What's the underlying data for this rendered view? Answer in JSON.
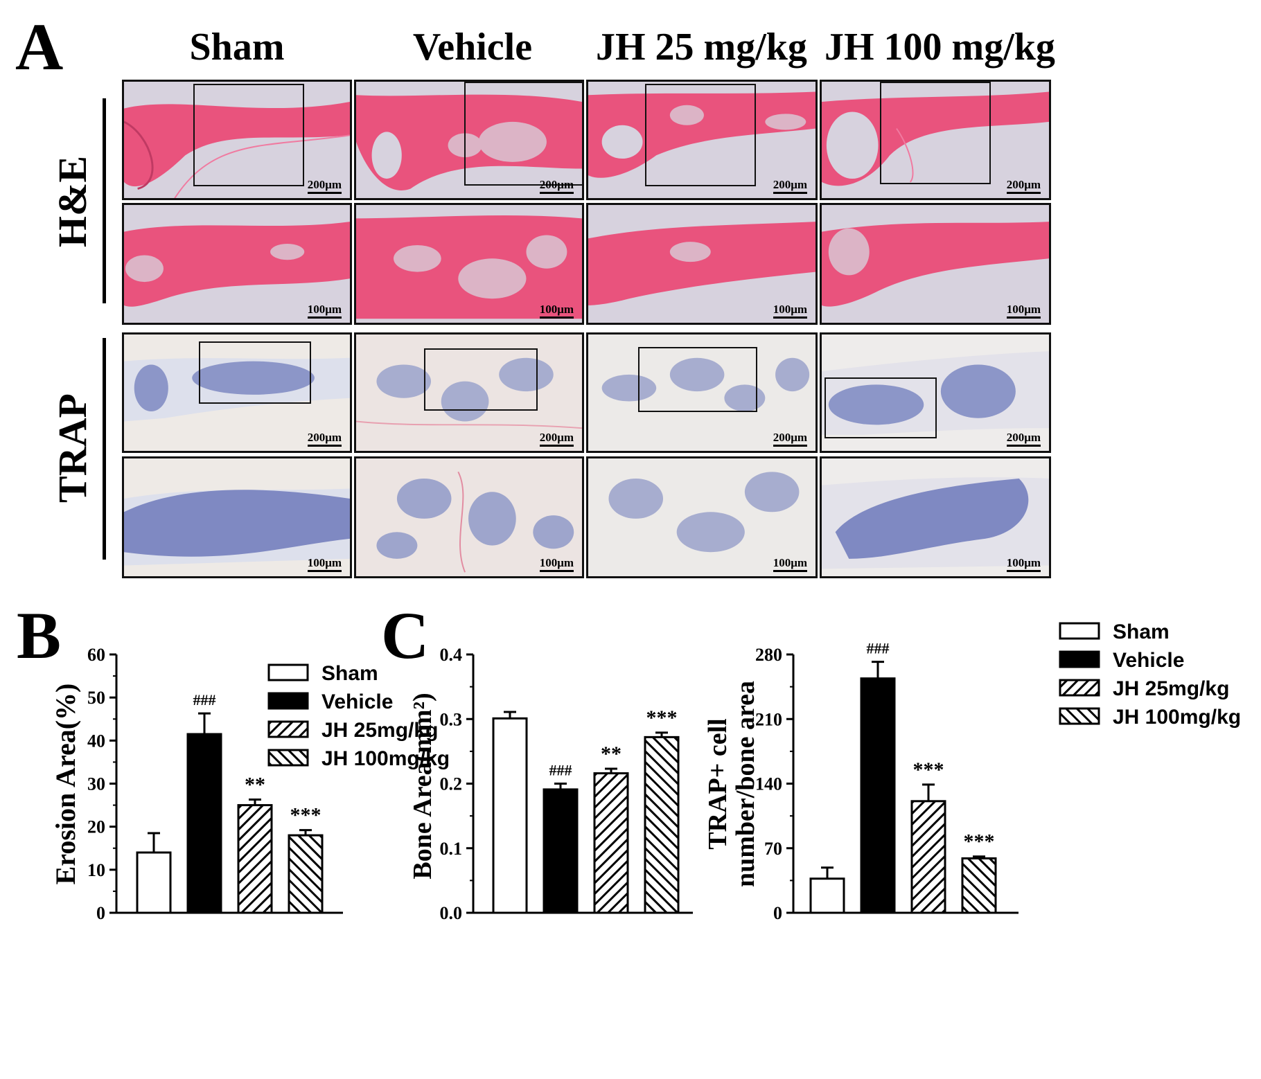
{
  "panel_a": {
    "letter": "A",
    "columns": [
      "Sham",
      "Vehicle",
      "JH 25 mg/kg",
      "JH 100 mg/kg"
    ],
    "rows": [
      "H&E",
      "TRAP"
    ],
    "scale_low": "200μm",
    "scale_high": "100μm",
    "colors": {
      "he_bg": "#d7d2de",
      "he_tissue": "#e9537d",
      "trap_bg": "#eeeae6",
      "trap_cells": "#4a5aa8"
    }
  },
  "panel_b": {
    "letter": "B"
  },
  "panel_c": {
    "letter": "C"
  },
  "legend": {
    "items": [
      "Sham",
      "Vehicle",
      "JH 25mg/kg",
      "JH 100mg/kg"
    ],
    "fills": [
      "white",
      "black",
      "hatch-forward",
      "hatch-back"
    ]
  },
  "chart_data": [
    {
      "type": "bar",
      "categories": [
        "Sham",
        "Vehicle",
        "JH 25mg/kg",
        "JH 100mg/kg"
      ],
      "values": [
        14,
        41.5,
        25,
        18
      ],
      "errors": [
        4.5,
        4.8,
        1.3,
        1.2
      ],
      "annotations": [
        "",
        "###",
        "**",
        "***"
      ],
      "ylabel": "Erosion Area(%)",
      "ylim": [
        0,
        60
      ],
      "yticks": [
        0,
        10,
        20,
        30,
        40,
        50,
        60
      ],
      "ytick_labels": [
        "0",
        "10",
        "20",
        "30",
        "40",
        "50",
        "60"
      ],
      "legend": "top-right"
    },
    {
      "type": "bar",
      "categories": [
        "Sham",
        "Vehicle",
        "JH 25mg/kg",
        "JH 100mg/kg"
      ],
      "values": [
        0.301,
        0.191,
        0.216,
        0.272
      ],
      "errors": [
        0.01,
        0.009,
        0.007,
        0.007
      ],
      "annotations": [
        "",
        "###",
        "**",
        "***"
      ],
      "ylabel": "Bone Area(mm²)",
      "ylim": [
        0,
        0.4
      ],
      "yticks": [
        0,
        0.1,
        0.2,
        0.3,
        0.4
      ],
      "ytick_labels": [
        "0.0",
        "0.1",
        "0.2",
        "0.3",
        "0.4"
      ]
    },
    {
      "type": "bar",
      "categories": [
        "Sham",
        "Vehicle",
        "JH 25mg/kg",
        "JH 100mg/kg"
      ],
      "values": [
        37,
        254,
        121,
        59
      ],
      "errors": [
        12,
        18,
        18,
        2
      ],
      "annotations": [
        "",
        "###",
        "***",
        "***"
      ],
      "ylabel_line1": "TRAP+ cell",
      "ylabel_line2": "number/bone area",
      "ylim": [
        0,
        280
      ],
      "yticks": [
        0,
        70,
        140,
        210,
        280
      ],
      "ytick_labels": [
        "0",
        "70",
        "140",
        "210",
        "280"
      ],
      "legend": "top-right"
    }
  ]
}
